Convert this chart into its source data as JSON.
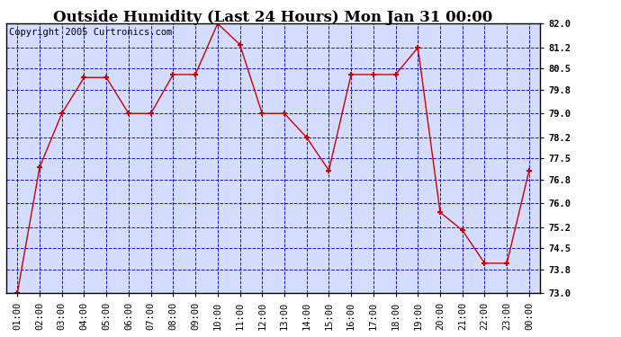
{
  "title": "Outside Humidity (Last 24 Hours) Mon Jan 31 00:00",
  "copyright": "Copyright 2005 Curtronics.com",
  "x_labels": [
    "01:00",
    "02:00",
    "03:00",
    "04:00",
    "05:00",
    "06:00",
    "07:00",
    "08:00",
    "09:00",
    "10:00",
    "11:00",
    "12:00",
    "13:00",
    "14:00",
    "15:00",
    "16:00",
    "17:00",
    "18:00",
    "19:00",
    "20:00",
    "21:00",
    "22:00",
    "23:00",
    "00:00"
  ],
  "y_values": [
    73.0,
    77.2,
    79.0,
    80.2,
    80.2,
    79.0,
    79.0,
    80.3,
    80.3,
    82.0,
    81.3,
    79.0,
    79.0,
    78.2,
    77.1,
    80.3,
    80.3,
    80.3,
    81.2,
    75.7,
    75.1,
    74.0,
    74.0,
    77.1
  ],
  "line_color": "#cc0000",
  "marker_color": "#cc0000",
  "plot_bg_color": "#d4ddff",
  "grid_color": "#0000bb",
  "title_color": "#000000",
  "border_color": "#000000",
  "ylim": [
    73.0,
    82.0
  ],
  "yticks": [
    73.0,
    73.8,
    74.5,
    75.2,
    76.0,
    76.8,
    77.5,
    78.2,
    79.0,
    79.8,
    80.5,
    81.2,
    82.0
  ],
  "ytick_labels": [
    "73.0",
    "73.8",
    "74.5",
    "75.2",
    "76.0",
    "76.8",
    "77.5",
    "78.2",
    "79.0",
    "79.8",
    "80.5",
    "81.2",
    "82.0"
  ],
  "title_fontsize": 12,
  "copyright_fontsize": 7.5,
  "tick_fontsize": 7.5
}
